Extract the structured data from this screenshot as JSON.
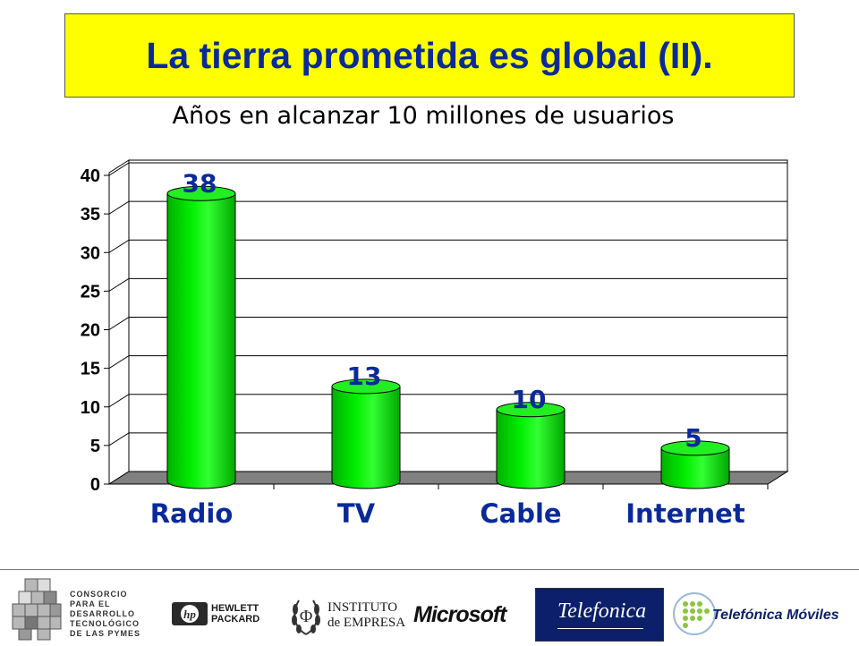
{
  "slide": {
    "title": "La tierra prometida es global (II)."
  },
  "chart_data": {
    "type": "bar",
    "title": "Años en alcanzar 10 millones de usuarios",
    "categories": [
      "Radio",
      "TV",
      "Cable",
      "Internet"
    ],
    "values": [
      38,
      13,
      10,
      5
    ],
    "data_labels": [
      "38",
      "13",
      "10",
      "5"
    ],
    "yticks": [
      0,
      5,
      10,
      15,
      20,
      25,
      30,
      35,
      40
    ],
    "ylim": [
      0,
      40
    ],
    "xlabel": "",
    "ylabel": "",
    "grid": true,
    "legend": "none",
    "style": "3d-cylinder",
    "bar_color": "#00ee00",
    "label_color": "#0a2a9a"
  },
  "footer": {
    "logos": [
      {
        "icon": "cubes-icon",
        "text": [
          "CONSORCIO",
          "PARA EL",
          "DESARROLLO",
          "TECNOLÓGICO",
          "DE LAS PYMES"
        ]
      },
      {
        "icon": "hp-icon",
        "text": [
          "HEWLETT",
          "PACKARD"
        ]
      },
      {
        "icon": "laurel-icon",
        "text": [
          "INSTITUTO",
          "de EMPRESA"
        ]
      },
      {
        "icon": "microsoft-icon",
        "text": [
          "Microsoft"
        ]
      },
      {
        "icon": "telefonica-icon",
        "text": [
          "Telefonica"
        ]
      },
      {
        "icon": "telefonica-moviles-icon",
        "text": [
          "Telefónica Móviles"
        ]
      }
    ]
  }
}
